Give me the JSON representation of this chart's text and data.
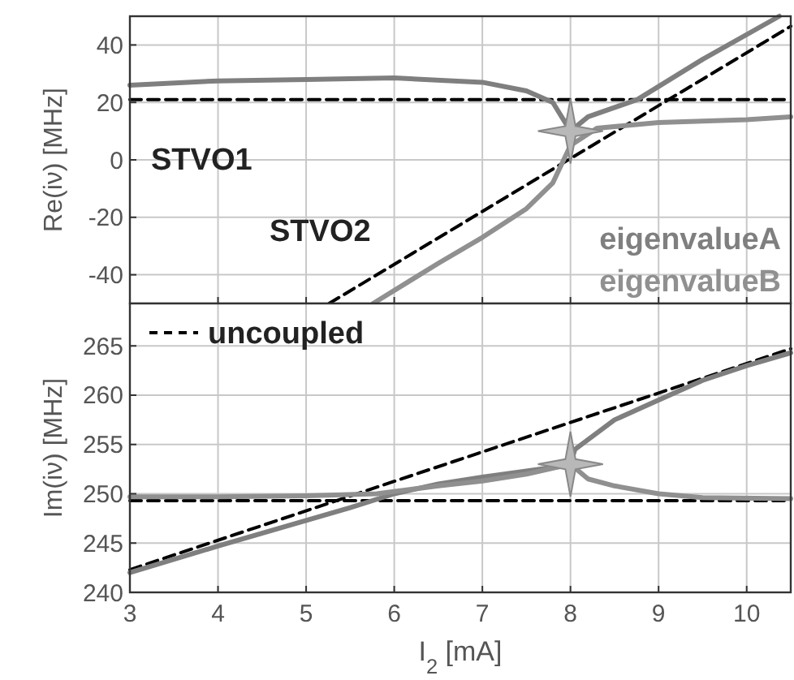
{
  "chart_data": [
    {
      "type": "line",
      "ylabel": "Re(iν) [MHz]",
      "xlim": [
        3,
        10.5
      ],
      "xticks": [
        3,
        4,
        5,
        6,
        7,
        8,
        9,
        10
      ],
      "ylim": [
        -50,
        50
      ],
      "yticks": [
        -40,
        -20,
        0,
        20,
        40
      ],
      "grid": true,
      "tick_labels": "y",
      "legend": "bottom right",
      "annotations": [
        "STVO1",
        "STVO2"
      ],
      "series": [
        {
          "color": "#000000",
          "line_style": "dashed",
          "x": [
            3,
            10.5
          ],
          "values": [
            21,
            21
          ]
        },
        {
          "color": "#000000",
          "line_style": "dashed",
          "x": [
            5.26,
            10.5
          ],
          "values": [
            -50,
            46.5
          ]
        },
        {
          "name": "eigenvalueA",
          "color": "#7f7f7f",
          "line_style": "solid",
          "x": [
            3,
            4,
            5,
            6,
            7,
            7.5,
            7.8,
            8,
            8.2,
            8.76,
            9.5,
            10.37
          ],
          "values": [
            26,
            27.5,
            28,
            28.5,
            27,
            24,
            20,
            10,
            15,
            21,
            35,
            50
          ]
        },
        {
          "name": "eigenvalueB",
          "color": "#909090",
          "line_style": "solid",
          "x": [
            5.76,
            6.5,
            7,
            7.5,
            7.8,
            8,
            8.3,
            9,
            10,
            10.5
          ],
          "values": [
            -50,
            -36,
            -27,
            -17,
            -8,
            5,
            11,
            13,
            14,
            15
          ]
        },
        {
          "type": "scatter",
          "marker": "star",
          "color": "#b8b8b8",
          "x": [
            8
          ],
          "values": [
            10
          ]
        }
      ]
    },
    {
      "type": "line",
      "xlabel": "I$_{2}$ [mA]",
      "ylabel": "Im(iν) [MHz]",
      "xlim": [
        3,
        10.5
      ],
      "xticks": [
        3,
        4,
        5,
        6,
        7,
        8,
        9,
        10
      ],
      "ylim": [
        240,
        269.3
      ],
      "yticks": [
        240,
        245,
        250,
        255,
        260,
        265
      ],
      "grid": true,
      "legend": "top left",
      "series": [
        {
          "name": "uncoupled",
          "color": "#000000",
          "line_style": "dashed",
          "x": [
            3,
            10.5
          ],
          "values": [
            249.3,
            249.3
          ]
        },
        {
          "color": "#000000",
          "line_style": "dashed",
          "x": [
            3,
            10.5
          ],
          "values": [
            242.3,
            264.7
          ]
        },
        {
          "color": "#7f7f7f",
          "line_style": "solid",
          "x": [
            3,
            4,
            5,
            5.5,
            6,
            6.5,
            7,
            7.5,
            7.9,
            8,
            8.05,
            8.5,
            9,
            9.5,
            10,
            10.5
          ],
          "values": [
            242,
            244.7,
            247.3,
            248.6,
            250,
            251,
            251.7,
            252.3,
            252.8,
            253,
            254.5,
            257.5,
            259.5,
            261.5,
            263,
            264.3
          ]
        },
        {
          "color": "#909090",
          "line_style": "solid",
          "x": [
            3,
            4,
            5,
            5.8,
            6.5,
            7,
            7.5,
            8,
            8.2,
            8.5,
            9,
            9.5,
            10.5
          ],
          "values": [
            249.7,
            249.7,
            249.8,
            250,
            250.8,
            251.3,
            252,
            253,
            251.5,
            250.8,
            250,
            249.6,
            249.5
          ]
        },
        {
          "type": "scatter",
          "marker": "star",
          "color": "#b8b8b8",
          "x": [
            8
          ],
          "values": [
            253
          ]
        }
      ]
    }
  ]
}
